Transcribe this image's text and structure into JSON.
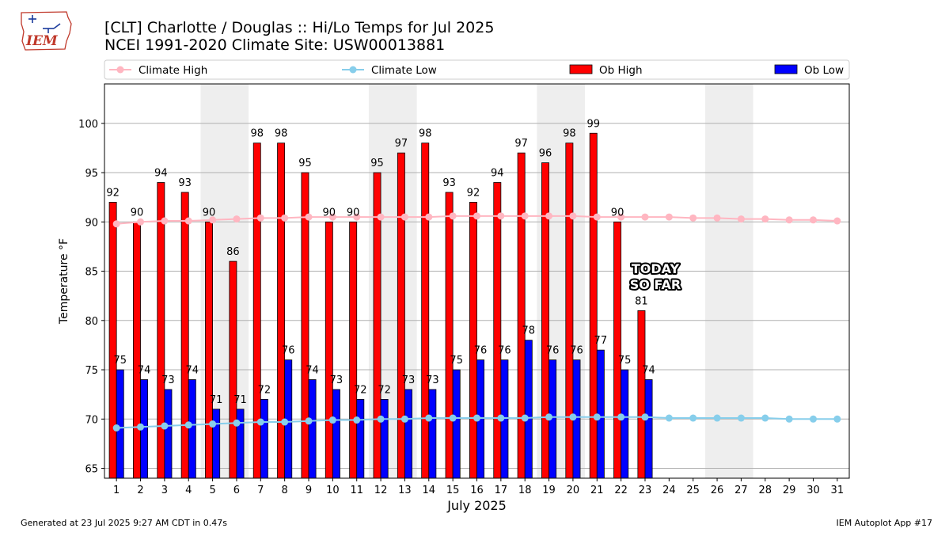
{
  "title_line1": "[CLT] Charlotte / Douglas :: Hi/Lo Temps for Jul 2025",
  "title_line2": "NCEI 1991-2020 Climate Site: USW00013881",
  "footer_left": "Generated at 23 Jul 2025 9:27 AM CDT in 0.47s",
  "footer_right": "IEM Autoplot App #17",
  "logo_text": "IEM",
  "annotation": [
    "TODAY",
    "SO FAR"
  ],
  "colors": {
    "ob_high": "#ff0000",
    "ob_low": "#0000ff",
    "climate_high": "#ffb6c1",
    "climate_low": "#87ceeb",
    "weekend_shade": "#eeeeee",
    "grid": "#b0b0b0"
  },
  "chart_data": {
    "type": "bar",
    "xlabel": "July 2025",
    "ylabel": "Temperature °F",
    "ylim": [
      64,
      104
    ],
    "yticks": [
      65,
      70,
      75,
      80,
      85,
      90,
      95,
      100
    ],
    "grid": true,
    "legend_placement": "top",
    "legend": [
      "Climate High",
      "Climate Low",
      "Ob High",
      "Ob Low"
    ],
    "shaded_days": [
      [
        5,
        6
      ],
      [
        12,
        13
      ],
      [
        19,
        20
      ],
      [
        26,
        27
      ]
    ],
    "days": [
      1,
      2,
      3,
      4,
      5,
      6,
      7,
      8,
      9,
      10,
      11,
      12,
      13,
      14,
      15,
      16,
      17,
      18,
      19,
      20,
      21,
      22,
      23,
      24,
      25,
      26,
      27,
      28,
      29,
      30,
      31
    ],
    "ob_high": [
      92,
      90,
      94,
      93,
      90,
      86,
      98,
      98,
      95,
      90,
      90,
      95,
      97,
      98,
      93,
      92,
      94,
      97,
      96,
      98,
      99,
      90,
      81
    ],
    "ob_low": [
      75,
      74,
      73,
      74,
      71,
      71,
      72,
      76,
      74,
      73,
      72,
      72,
      73,
      73,
      75,
      76,
      76,
      78,
      76,
      76,
      77,
      75,
      74
    ],
    "climate_high": [
      89.8,
      90.0,
      90.1,
      90.1,
      90.2,
      90.3,
      90.4,
      90.4,
      90.5,
      90.5,
      90.5,
      90.5,
      90.5,
      90.5,
      90.6,
      90.6,
      90.6,
      90.6,
      90.6,
      90.6,
      90.5,
      90.5,
      90.5,
      90.5,
      90.4,
      90.4,
      90.3,
      90.3,
      90.2,
      90.2,
      90.1
    ],
    "climate_low": [
      69.1,
      69.2,
      69.3,
      69.4,
      69.5,
      69.6,
      69.7,
      69.7,
      69.8,
      69.9,
      69.9,
      70.0,
      70.0,
      70.1,
      70.1,
      70.1,
      70.1,
      70.1,
      70.2,
      70.2,
      70.2,
      70.2,
      70.2,
      70.1,
      70.1,
      70.1,
      70.1,
      70.1,
      70.0,
      70.0,
      70.0
    ]
  }
}
